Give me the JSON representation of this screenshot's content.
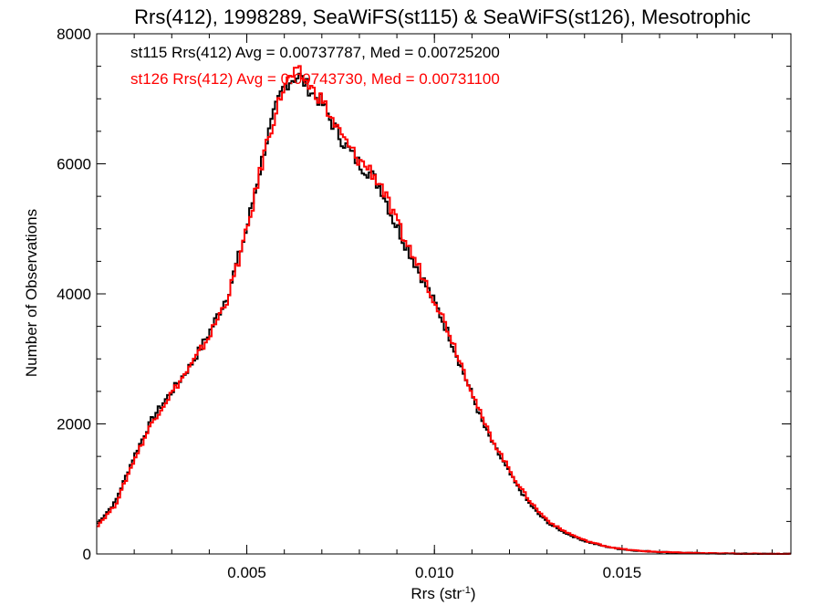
{
  "chart_data": {
    "type": "line",
    "title": "Rrs(412), 1998289, SeaWiFS(st115) & SeaWiFS(st126), Mesotrophic",
    "xlabel": "Rrs (str",
    "xlabel_sup": "-1",
    "xlabel_close": ")",
    "ylabel": "Number of Observations",
    "xlim": [
      0.001,
      0.0195
    ],
    "ylim": [
      0,
      8000
    ],
    "x_ticks": [
      0.005,
      0.01,
      0.015
    ],
    "x_tick_labels": [
      "0.005",
      "0.010",
      "0.015"
    ],
    "y_ticks": [
      0,
      2000,
      4000,
      6000,
      8000
    ],
    "y_tick_labels": [
      "0",
      "2000",
      "4000",
      "6000",
      "8000"
    ],
    "grid": false,
    "step_style": "histogram",
    "colors": {
      "st115": "#000000",
      "st126": "#ff0000"
    },
    "annotations": [
      "st115 Rrs(412) Avg = 0.00737787, Med = 0.00725200",
      "st126 Rrs(412) Avg = 0.00743730, Med = 0.00731100"
    ],
    "series": [
      {
        "key": "st115",
        "color": "#000000",
        "x": [
          0.001,
          0.0015,
          0.002,
          0.0025,
          0.003,
          0.0035,
          0.004,
          0.0045,
          0.005,
          0.0055,
          0.0058,
          0.006,
          0.0062,
          0.0064,
          0.0066,
          0.0068,
          0.007,
          0.0072,
          0.0075,
          0.0078,
          0.008,
          0.0083,
          0.0086,
          0.0089,
          0.0092,
          0.0095,
          0.0098,
          0.0101,
          0.0104,
          0.0107,
          0.011,
          0.0113,
          0.0116,
          0.0119,
          0.0122,
          0.0125,
          0.0128,
          0.0131,
          0.0134,
          0.0137,
          0.014,
          0.0143,
          0.0146,
          0.0149,
          0.0152,
          0.0155,
          0.016,
          0.0165,
          0.017,
          0.0175,
          0.018,
          0.0185,
          0.019,
          0.0195
        ],
        "y": [
          450,
          800,
          1500,
          2100,
          2500,
          2900,
          3400,
          4000,
          5000,
          6300,
          6900,
          7200,
          7300,
          7350,
          7200,
          7050,
          6950,
          6700,
          6400,
          6150,
          6000,
          5850,
          5600,
          5150,
          4800,
          4450,
          4100,
          3750,
          3350,
          2900,
          2450,
          2000,
          1650,
          1350,
          1050,
          800,
          600,
          450,
          350,
          270,
          200,
          150,
          110,
          80,
          60,
          45,
          30,
          20,
          12,
          8,
          5,
          3,
          2,
          1
        ]
      },
      {
        "key": "st126",
        "color": "#ff0000",
        "x": [
          0.001,
          0.0015,
          0.002,
          0.0025,
          0.003,
          0.0035,
          0.004,
          0.0045,
          0.005,
          0.0055,
          0.0058,
          0.006,
          0.0062,
          0.0064,
          0.0066,
          0.0068,
          0.007,
          0.0072,
          0.0075,
          0.0078,
          0.008,
          0.0083,
          0.0086,
          0.0089,
          0.0092,
          0.0095,
          0.0098,
          0.0101,
          0.0104,
          0.0107,
          0.011,
          0.0113,
          0.0116,
          0.0119,
          0.0122,
          0.0125,
          0.0128,
          0.0131,
          0.0134,
          0.0137,
          0.014,
          0.0143,
          0.0146,
          0.0149,
          0.0152,
          0.0155,
          0.016,
          0.0165,
          0.017,
          0.0175,
          0.018,
          0.0185,
          0.019,
          0.0195
        ],
        "y": [
          420,
          750,
          1450,
          2050,
          2480,
          2880,
          3350,
          3950,
          4950,
          6250,
          6850,
          7200,
          7350,
          7400,
          7250,
          7100,
          7000,
          6750,
          6450,
          6200,
          6050,
          5900,
          5650,
          5200,
          4850,
          4500,
          4150,
          3800,
          3400,
          2950,
          2500,
          2050,
          1700,
          1400,
          1100,
          850,
          640,
          480,
          370,
          285,
          210,
          160,
          115,
          85,
          62,
          46,
          31,
          21,
          13,
          8,
          5,
          3,
          2,
          1
        ]
      }
    ]
  }
}
